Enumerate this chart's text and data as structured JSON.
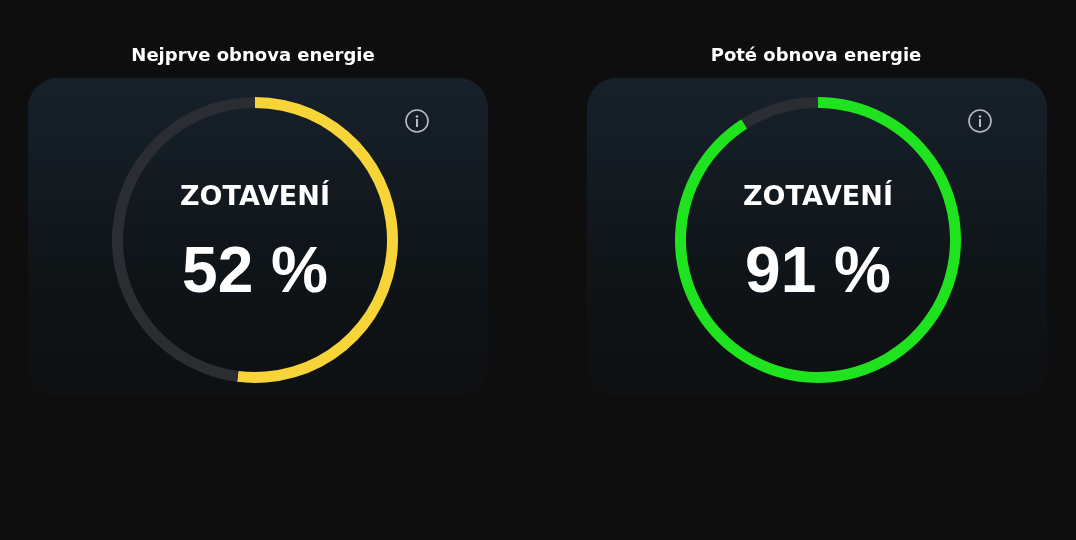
{
  "chart_data": [
    {
      "type": "donut",
      "title": "Nejprve obnova energie",
      "subtitle": "ZOTAVENÍ",
      "categories": [
        null,
        null
      ],
      "values": [
        52,
        48
      ],
      "colors": [
        "#f7d437",
        "#2a2e33"
      ],
      "value_labels": [
        "52 %",
        null
      ]
    },
    {
      "type": "donut",
      "title": "Poté obnova energie",
      "subtitle": "ZOTAVENÍ",
      "categories": [
        null,
        null
      ],
      "values": [
        91,
        9
      ],
      "colors": [
        "#1ee31e",
        "#2a2e33"
      ],
      "value_labels": [
        "91 %",
        null
      ]
    }
  ]
}
